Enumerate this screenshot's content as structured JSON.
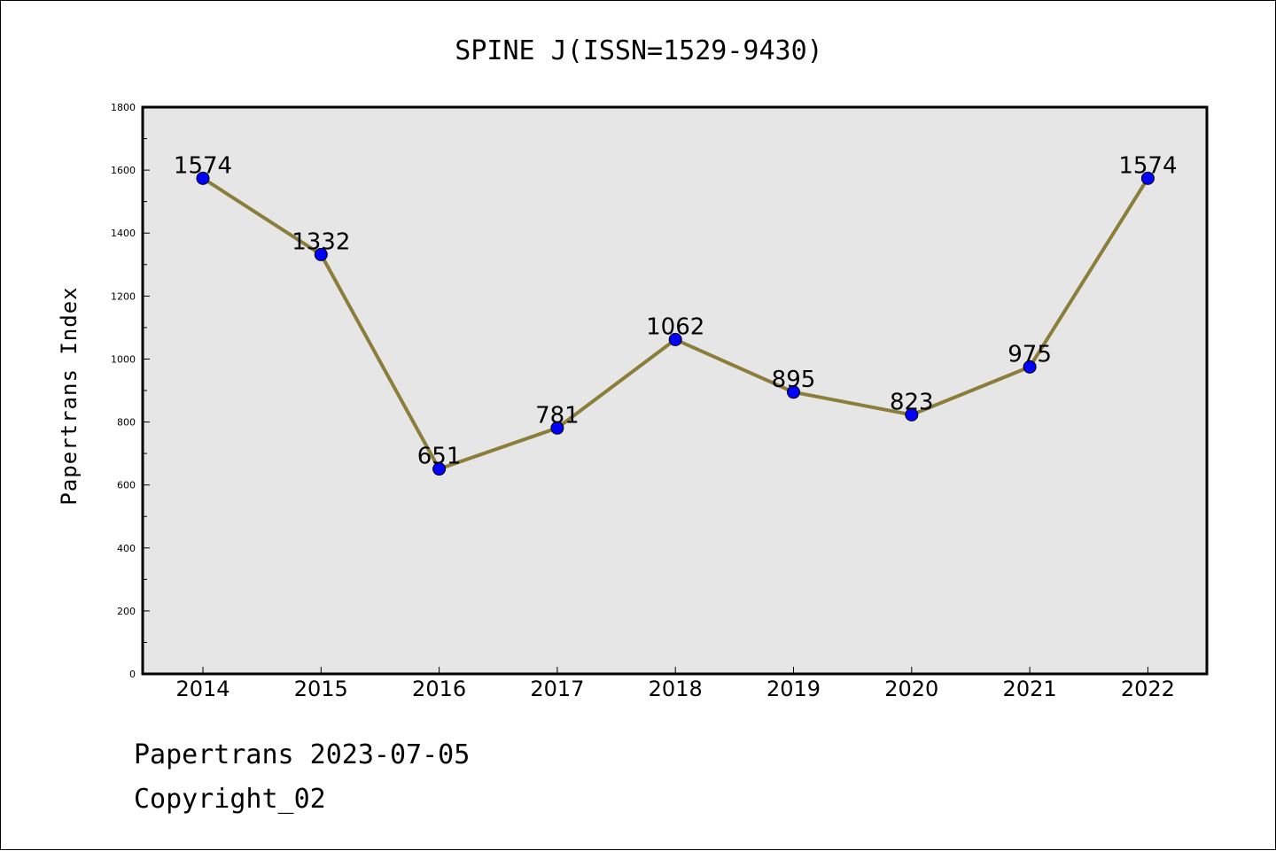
{
  "chart_data": {
    "type": "line",
    "title": "SPINE J(ISSN=1529-9430)",
    "xlabel": "",
    "ylabel": "Papertrans Index",
    "categories": [
      "2014",
      "2015",
      "2016",
      "2017",
      "2018",
      "2019",
      "2020",
      "2021",
      "2022"
    ],
    "series": [
      {
        "values": [
          1574,
          1332,
          651,
          781,
          1062,
          895,
          823,
          975,
          1574
        ]
      }
    ],
    "data_labels": [
      "1574",
      "1332",
      "651",
      "781",
      "1062",
      "895",
      "823",
      "975",
      "1574"
    ],
    "ylim": [
      0,
      1800
    ],
    "yticks": [
      "0",
      "200",
      "400",
      "600",
      "800",
      "1000",
      "1200",
      "1400",
      "1600",
      "1800"
    ],
    "grid": false,
    "legend": "none",
    "colors": {
      "line": "#8B7D3A",
      "marker": "#0000FF",
      "plot_background": "#E6E6E6"
    }
  },
  "footer": {
    "line1": "Papertrans 2023-07-05",
    "line2": "Copyright_02"
  }
}
